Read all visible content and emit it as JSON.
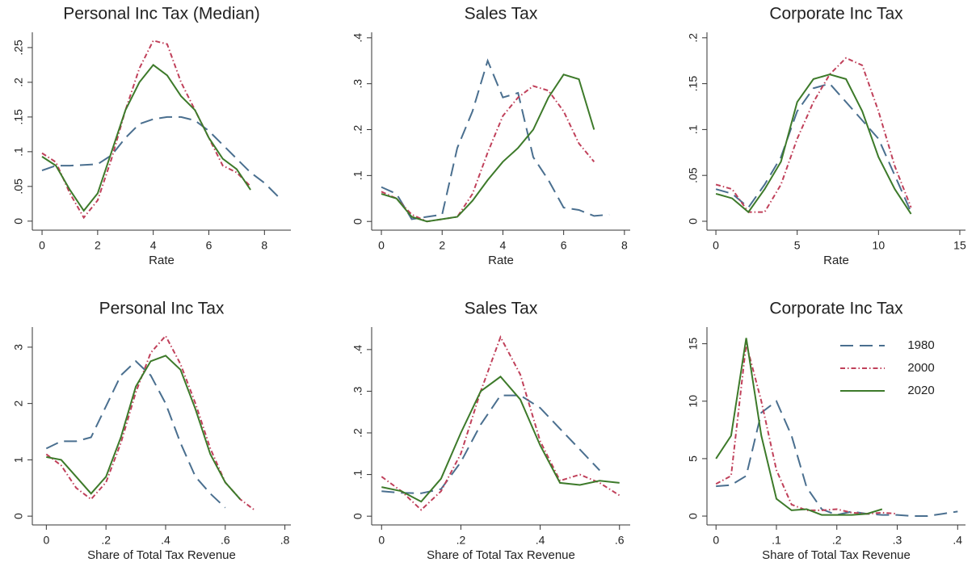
{
  "chart_data": [
    {
      "type": "line",
      "title": "Personal Inc Tax (Median)",
      "xlabel": "Rate",
      "x": [
        0,
        0.5,
        1,
        1.5,
        2,
        2.5,
        3,
        3.5,
        4,
        4.5,
        5,
        5.5,
        6,
        6.5,
        7,
        7.5,
        8,
        8.5
      ],
      "series": [
        {
          "color": "#4a6f8f",
          "style": "dashed",
          "values": [
            0.073,
            0.08,
            0.08,
            0.081,
            0.082,
            0.095,
            0.12,
            0.14,
            0.147,
            0.15,
            0.15,
            0.145,
            0.13,
            0.11,
            0.09,
            0.07,
            0.055,
            0.035
          ]
        },
        {
          "color": "#c0405a",
          "style": "dashdot",
          "values": [
            0.098,
            0.085,
            0.04,
            0.005,
            0.03,
            0.09,
            0.16,
            0.22,
            0.26,
            0.255,
            0.2,
            0.16,
            0.12,
            0.08,
            0.07,
            0.05,
            null,
            null
          ]
        },
        {
          "color": "#3d7a2a",
          "style": "solid",
          "values": [
            0.093,
            0.08,
            0.045,
            0.015,
            0.04,
            0.1,
            0.16,
            0.2,
            0.225,
            0.21,
            0.18,
            0.16,
            0.12,
            0.09,
            0.075,
            0.045,
            null,
            null
          ]
        }
      ],
      "xlim": [
        -0.35,
        8.95
      ],
      "xticks": [
        0,
        2,
        4,
        6,
        8
      ],
      "ylim": [
        -0.013,
        0.272
      ],
      "yticks": [
        0,
        {
          "value": 0.05,
          "label": ".05"
        },
        {
          "value": 0.1,
          "label": ".1"
        },
        {
          "value": 0.15,
          "label": ".15"
        },
        {
          "value": 0.2,
          "label": ".2"
        },
        {
          "value": 0.25,
          "label": ".25"
        }
      ]
    },
    {
      "type": "line",
      "title": "Sales Tax",
      "xlabel": "Rate",
      "x": [
        0,
        0.5,
        1,
        1.5,
        2,
        2.5,
        3,
        3.5,
        4,
        4.5,
        5,
        5.5,
        6,
        6.5,
        7,
        7.5
      ],
      "series": [
        {
          "color": "#4a6f8f",
          "style": "dashed",
          "values": [
            0.075,
            0.06,
            0.005,
            0.01,
            0.015,
            0.16,
            0.24,
            0.35,
            0.27,
            0.28,
            0.14,
            0.09,
            0.03,
            0.025,
            0.012,
            0.015
          ]
        },
        {
          "color": "#c0405a",
          "style": "dashdot",
          "values": [
            0.065,
            0.05,
            0.015,
            0,
            0.005,
            0.01,
            0.06,
            0.15,
            0.23,
            0.27,
            0.295,
            0.285,
            0.24,
            0.17,
            0.13,
            null
          ]
        },
        {
          "color": "#3d7a2a",
          "style": "solid",
          "values": [
            0.06,
            0.05,
            0.01,
            0,
            0.005,
            0.01,
            0.045,
            0.09,
            0.13,
            0.16,
            0.2,
            0.27,
            0.32,
            0.31,
            0.2,
            null
          ]
        }
      ],
      "xlim": [
        -0.32,
        8.19
      ],
      "xticks": [
        0,
        2,
        4,
        6,
        8
      ],
      "ylim": [
        -0.019,
        0.412
      ],
      "yticks": [
        0,
        {
          "value": 0.1,
          "label": ".1"
        },
        {
          "value": 0.2,
          "label": ".2"
        },
        {
          "value": 0.3,
          "label": ".3"
        },
        {
          "value": 0.4,
          "label": ".4"
        }
      ]
    },
    {
      "type": "line",
      "title": "Corporate Inc Tax",
      "xlabel": "Rate",
      "x": [
        0,
        1,
        2,
        3,
        4,
        5,
        6,
        7,
        8,
        9,
        10,
        11,
        12
      ],
      "series": [
        {
          "color": "#4a6f8f",
          "style": "dashed",
          "values": [
            0.035,
            0.03,
            0.015,
            0.04,
            0.07,
            0.12,
            0.145,
            0.15,
            0.13,
            0.11,
            0.09,
            0.05,
            0.01
          ]
        },
        {
          "color": "#c0405a",
          "style": "dashdot",
          "values": [
            0.04,
            0.035,
            0.01,
            0.01,
            0.04,
            0.09,
            0.13,
            0.16,
            0.178,
            0.17,
            0.12,
            0.06,
            0.015
          ]
        },
        {
          "color": "#3d7a2a",
          "style": "solid",
          "values": [
            0.03,
            0.025,
            0.01,
            0.035,
            0.065,
            0.13,
            0.155,
            0.16,
            0.155,
            0.12,
            0.07,
            0.035,
            0.008
          ]
        }
      ],
      "xlim": [
        -0.55,
        15.35
      ],
      "xticks": [
        0,
        5,
        10,
        15
      ],
      "ylim": [
        -0.0097,
        0.206
      ],
      "yticks": [
        0,
        {
          "value": 0.05,
          "label": ".05"
        },
        {
          "value": 0.1,
          "label": ".1"
        },
        {
          "value": 0.15,
          "label": ".15"
        },
        {
          "value": 0.2,
          "label": ".2"
        }
      ]
    },
    {
      "type": "line",
      "title": "Personal Inc Tax",
      "xlabel": "Share of Total Tax Revenue",
      "x": [
        0,
        0.05,
        0.1,
        0.15,
        0.2,
        0.25,
        0.3,
        0.35,
        0.4,
        0.45,
        0.5,
        0.55,
        0.6,
        0.65,
        0.7
      ],
      "series": [
        {
          "color": "#4a6f8f",
          "style": "dashed",
          "values": [
            1.2,
            1.33,
            1.33,
            1.4,
            1.95,
            2.5,
            2.75,
            2.5,
            2.0,
            1.3,
            0.7,
            0.4,
            0.15,
            null,
            null
          ]
        },
        {
          "color": "#c0405a",
          "style": "dashdot",
          "values": [
            1.1,
            0.9,
            0.5,
            0.3,
            0.6,
            1.3,
            2.2,
            2.9,
            3.2,
            2.7,
            2.0,
            1.2,
            0.6,
            0.3,
            0.1
          ]
        },
        {
          "color": "#3d7a2a",
          "style": "solid",
          "values": [
            1.05,
            1.0,
            0.7,
            0.4,
            0.7,
            1.4,
            2.3,
            2.75,
            2.85,
            2.6,
            1.9,
            1.1,
            0.6,
            0.3,
            null
          ]
        }
      ],
      "xlim": [
        -0.047,
        0.82
      ],
      "xticks": [
        0,
        {
          "value": 0.2,
          "label": ".2"
        },
        {
          "value": 0.4,
          "label": ".4"
        },
        {
          "value": 0.6,
          "label": ".6"
        },
        {
          "value": 0.8,
          "label": ".8"
        }
      ],
      "ylim": [
        -0.156,
        3.357
      ],
      "yticks": [
        0,
        1,
        2,
        3
      ]
    },
    {
      "type": "line",
      "title": "Sales Tax",
      "xlabel": "Share of Total Tax Revenue",
      "x": [
        0,
        0.05,
        0.1,
        0.15,
        0.2,
        0.25,
        0.3,
        0.35,
        0.4,
        0.45,
        0.5,
        0.55,
        0.6,
        0.65
      ],
      "series": [
        {
          "color": "#4a6f8f",
          "style": "dashed",
          "values": [
            0.06,
            0.056,
            0.055,
            0.065,
            0.13,
            0.22,
            0.29,
            0.29,
            0.26,
            0.21,
            0.16,
            0.11,
            null,
            null
          ]
        },
        {
          "color": "#c0405a",
          "style": "dashdot",
          "values": [
            0.095,
            0.06,
            0.015,
            0.06,
            0.15,
            0.3,
            0.43,
            0.34,
            0.18,
            0.085,
            0.1,
            0.08,
            0.05,
            null
          ]
        },
        {
          "color": "#3d7a2a",
          "style": "solid",
          "values": [
            0.07,
            0.06,
            0.035,
            0.09,
            0.2,
            0.3,
            0.335,
            0.28,
            0.17,
            0.08,
            0.075,
            0.085,
            0.08,
            null
          ]
        }
      ],
      "xlim": [
        -0.025,
        0.627
      ],
      "xticks": [
        0,
        {
          "value": 0.2,
          "label": ".2"
        },
        {
          "value": 0.4,
          "label": ".4"
        },
        {
          "value": 0.6,
          "label": ".6"
        }
      ],
      "ylim": [
        -0.021,
        0.454
      ],
      "yticks": [
        0,
        {
          "value": 0.1,
          "label": ".1"
        },
        {
          "value": 0.2,
          "label": ".2"
        },
        {
          "value": 0.3,
          "label": ".3"
        },
        {
          "value": 0.4,
          "label": ".4"
        }
      ]
    },
    {
      "type": "line",
      "title": "Corporate Inc Tax",
      "xlabel": "Share of Total Tax Revenue",
      "legend": "upper right",
      "x": [
        0,
        0.025,
        0.05,
        0.075,
        0.1,
        0.125,
        0.15,
        0.175,
        0.2,
        0.225,
        0.25,
        0.275,
        0.3,
        0.325,
        0.35,
        0.375,
        0.4
      ],
      "series": [
        {
          "name": "1980",
          "color": "#4a6f8f",
          "style": "dashed",
          "values": [
            2.6,
            2.7,
            3.5,
            9,
            10,
            7,
            2.5,
            0.6,
            0.1,
            0.4,
            0.2,
            0.1,
            0.1,
            0,
            0,
            0.2,
            0.4
          ]
        },
        {
          "name": "2000",
          "color": "#c0405a",
          "style": "dashdot",
          "values": [
            2.8,
            3.5,
            15,
            10,
            4,
            1.0,
            0.5,
            0.5,
            0.6,
            0.3,
            0.2,
            0.3,
            0.2,
            null,
            null,
            null,
            null
          ]
        },
        {
          "name": "2020",
          "color": "#3d7a2a",
          "style": "solid",
          "values": [
            5,
            7,
            15.5,
            7,
            1.5,
            0.5,
            0.6,
            0.1,
            0.1,
            0.1,
            0.2,
            0.6,
            null,
            null,
            null,
            null,
            null
          ]
        }
      ],
      "xlim": [
        -0.015,
        0.413
      ],
      "xticks": [
        0,
        {
          "value": 0.1,
          "label": ".1"
        },
        {
          "value": 0.2,
          "label": ".2"
        },
        {
          "value": 0.3,
          "label": ".3"
        },
        {
          "value": 0.4,
          "label": ".4"
        }
      ],
      "ylim": [
        -0.77,
        16.45
      ],
      "yticks": [
        0,
        5,
        10,
        15
      ]
    }
  ]
}
